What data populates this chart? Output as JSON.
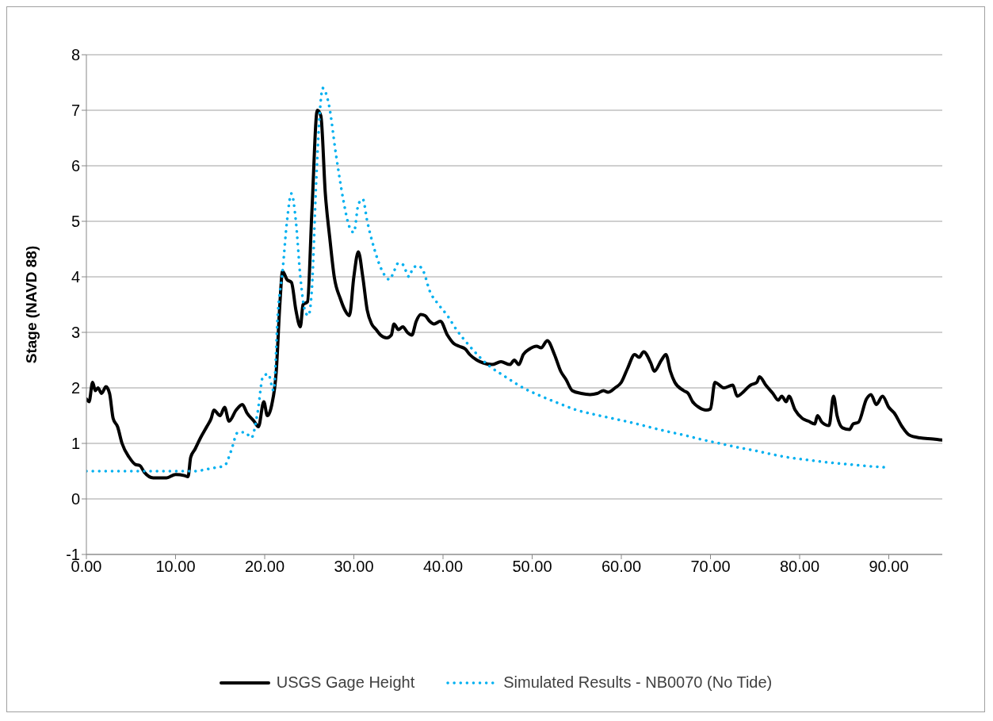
{
  "chart_data": {
    "type": "line",
    "ylabel": "Stage (NAVD 88)",
    "xlim": [
      0,
      96
    ],
    "xticks": [
      {
        "value": 0,
        "label": "0.00"
      },
      {
        "value": 10,
        "label": "10.00"
      },
      {
        "value": 20,
        "label": "20.00"
      },
      {
        "value": 30,
        "label": "30.00"
      },
      {
        "value": 40,
        "label": "40.00"
      },
      {
        "value": 50,
        "label": "50.00"
      },
      {
        "value": 60,
        "label": "60.00"
      },
      {
        "value": 70,
        "label": "70.00"
      },
      {
        "value": 80,
        "label": "80.00"
      },
      {
        "value": 90,
        "label": "90.00"
      }
    ],
    "ylim": [
      -1,
      8
    ],
    "yticks": [
      -1,
      0,
      1,
      2,
      3,
      4,
      5,
      6,
      7,
      8
    ],
    "grid": "y",
    "legend": "bottom",
    "marker": "none",
    "series": [
      {
        "name": "USGS Gage Height",
        "color": "#000000",
        "line_style": "solid",
        "x": [
          0,
          0.3,
          0.7,
          1,
          1.3,
          1.7,
          2.2,
          2.6,
          3,
          3.5,
          4,
          4.8,
          5.5,
          6,
          6.5,
          7.5,
          9,
          10,
          11,
          11.4,
          11.7,
          12.2,
          12.8,
          13.5,
          14,
          14.3,
          15,
          15.5,
          16,
          16.8,
          17.5,
          18,
          18.8,
          19.3,
          19.9,
          20.3,
          20.8,
          21.3,
          21.7,
          22,
          22.5,
          23,
          23.5,
          24,
          24.3,
          24.8,
          25.3,
          25.9,
          26.3,
          26.8,
          27.3,
          27.8,
          28.5,
          29,
          29.5,
          30,
          30.5,
          31,
          31.5,
          32,
          32.5,
          33,
          33.7,
          34.2,
          34.5,
          35,
          35.5,
          36,
          36.5,
          37,
          37.5,
          38,
          38.5,
          39,
          39.7,
          40.5,
          41.2,
          41.8,
          42.5,
          43,
          43.8,
          44.5,
          45.5,
          46.5,
          47.5,
          48,
          48.5,
          49,
          49.7,
          50.5,
          51,
          51.7,
          52.5,
          53.2,
          53.8,
          54.5,
          55.5,
          56.5,
          57.3,
          58,
          58.5,
          59.3,
          60,
          60.7,
          61.5,
          62,
          62.5,
          63.3,
          63.7,
          64.5,
          65,
          65.5,
          66,
          67,
          67.5,
          68,
          68.7,
          69.5,
          70,
          70.5,
          71,
          71.5,
          72.5,
          73,
          73.5,
          74.5,
          75.2,
          75.5,
          76.2,
          77,
          77.6,
          78,
          78.5,
          78.8,
          79.5,
          80.3,
          81,
          81.7,
          82,
          82.5,
          83.3,
          83.8,
          84.2,
          84.8,
          85.6,
          86,
          86.6,
          87.5,
          88,
          88.6,
          89.3,
          90,
          90.6,
          91.5,
          92.3,
          93.5,
          95,
          96
        ],
        "values": [
          1.8,
          1.75,
          2.1,
          1.95,
          2,
          1.9,
          2.02,
          1.9,
          1.45,
          1.3,
          1,
          0.75,
          0.62,
          0.6,
          0.48,
          0.38,
          0.38,
          0.44,
          0.42,
          0.4,
          0.75,
          0.9,
          1.1,
          1.3,
          1.45,
          1.6,
          1.5,
          1.65,
          1.4,
          1.6,
          1.7,
          1.55,
          1.4,
          1.3,
          1.75,
          1.5,
          1.7,
          2.3,
          3.5,
          4.1,
          3.95,
          3.9,
          3.4,
          3.1,
          3.5,
          3.55,
          5.2,
          7,
          6.9,
          5.5,
          4.7,
          4,
          3.6,
          3.4,
          3.3,
          4,
          4.45,
          4,
          3.4,
          3.15,
          3.05,
          2.95,
          2.9,
          2.95,
          3.15,
          3.05,
          3.1,
          3,
          2.95,
          3.2,
          3.32,
          3.3,
          3.2,
          3.15,
          3.2,
          2.95,
          2.8,
          2.75,
          2.7,
          2.6,
          2.5,
          2.45,
          2.42,
          2.47,
          2.42,
          2.5,
          2.42,
          2.6,
          2.7,
          2.75,
          2.72,
          2.85,
          2.6,
          2.3,
          2.15,
          1.95,
          1.9,
          1.88,
          1.9,
          1.95,
          1.92,
          2,
          2.1,
          2.35,
          2.6,
          2.55,
          2.65,
          2.45,
          2.3,
          2.5,
          2.6,
          2.3,
          2.1,
          1.95,
          1.9,
          1.75,
          1.65,
          1.6,
          1.62,
          2.1,
          2.05,
          2,
          2.05,
          1.85,
          1.9,
          2.05,
          2.1,
          2.2,
          2.05,
          1.9,
          1.78,
          1.85,
          1.75,
          1.85,
          1.6,
          1.45,
          1.4,
          1.35,
          1.5,
          1.38,
          1.32,
          1.85,
          1.5,
          1.28,
          1.25,
          1.35,
          1.38,
          1.8,
          1.88,
          1.7,
          1.85,
          1.65,
          1.55,
          1.3,
          1.15,
          1.1,
          1.08,
          1.06
        ]
      },
      {
        "name": "Simulated Results - NB0070 (No Tide)",
        "color": "#00b0f0",
        "line_style": "dotted",
        "x": [
          0,
          5,
          10,
          12,
          14,
          15.5,
          16.2,
          17,
          17.8,
          18.5,
          19.2,
          19.8,
          20.4,
          21,
          21.5,
          22,
          22.5,
          23,
          23.5,
          24,
          24.5,
          24.9,
          25.3,
          25.8,
          26.2,
          26.5,
          27.2,
          28,
          28.8,
          29.5,
          30,
          30.5,
          31,
          31.5,
          32.3,
          33.2,
          34,
          34.5,
          35,
          35.5,
          36.2,
          36.6,
          37.2,
          37.8,
          38.5,
          39.5,
          40.5,
          41.5,
          43,
          45,
          47,
          49,
          51,
          53,
          55,
          57,
          59,
          61,
          63,
          65,
          67,
          69,
          71,
          73,
          75,
          77,
          79,
          81,
          83,
          85,
          87,
          89.5
        ],
        "values": [
          0.5,
          0.5,
          0.5,
          0.5,
          0.55,
          0.6,
          0.85,
          1.2,
          1.2,
          1.1,
          1.55,
          2.2,
          2.25,
          1.95,
          3.4,
          4.1,
          5,
          5.5,
          5,
          4,
          3.4,
          3.3,
          3.8,
          5.8,
          7,
          7.4,
          7.1,
          6.2,
          5.4,
          4.9,
          4.8,
          5.3,
          5.4,
          5,
          4.5,
          4.1,
          3.95,
          4.1,
          4.25,
          4.22,
          4,
          4.15,
          4.2,
          4.1,
          3.75,
          3.5,
          3.3,
          3.05,
          2.75,
          2.42,
          2.2,
          2,
          1.85,
          1.72,
          1.6,
          1.52,
          1.45,
          1.38,
          1.3,
          1.22,
          1.15,
          1.07,
          1,
          0.93,
          0.87,
          0.8,
          0.74,
          0.7,
          0.66,
          0.63,
          0.6,
          0.57
        ]
      }
    ]
  }
}
